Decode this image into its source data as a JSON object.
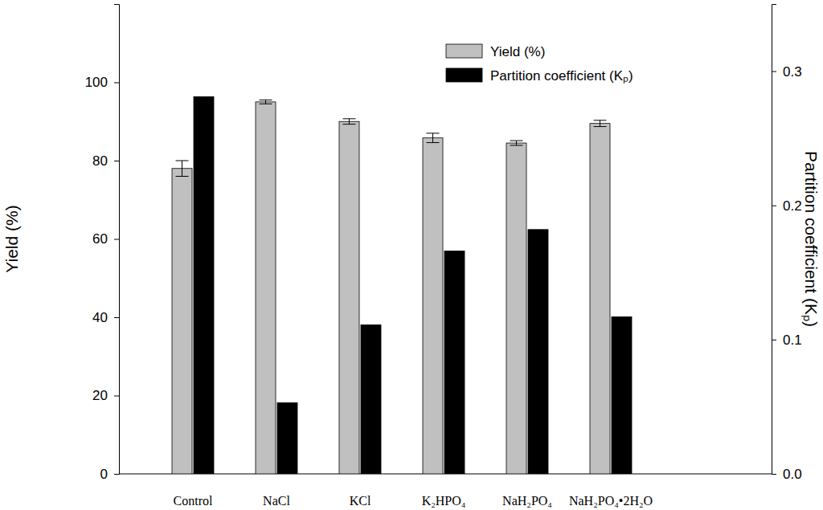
{
  "chart_data": {
    "type": "bar",
    "categories": [
      "Control",
      "NaCl",
      "KCl",
      "K₂HPO₄",
      "NaH₂PO₄",
      "NaH₂PO₄•2H₂O"
    ],
    "series": [
      {
        "name": "Yield (%)",
        "color": "#c0c0c0",
        "values": [
          78,
          95,
          90,
          85.8,
          84.5,
          89.5
        ],
        "errors": [
          2,
          0.5,
          0.7,
          1.2,
          0.6,
          0.8
        ]
      },
      {
        "name": "Partition coefficient (Kₚ)",
        "color": "#000000",
        "axis": "y2",
        "values": [
          0.281,
          0.053,
          0.111,
          0.166,
          0.182,
          0.117
        ]
      }
    ],
    "y_label": "Yield (%)",
    "y2_label": "Partition coefficient (Kₚ)",
    "ylim": [
      0,
      120
    ],
    "yticks": [
      0,
      20,
      40,
      60,
      80,
      100
    ],
    "y2lim": [
      0,
      0.35
    ],
    "y2ticks": [
      {
        "value": 0,
        "label": "0.0"
      },
      0.1,
      0.2,
      0.3
    ],
    "legend": "upper right"
  }
}
